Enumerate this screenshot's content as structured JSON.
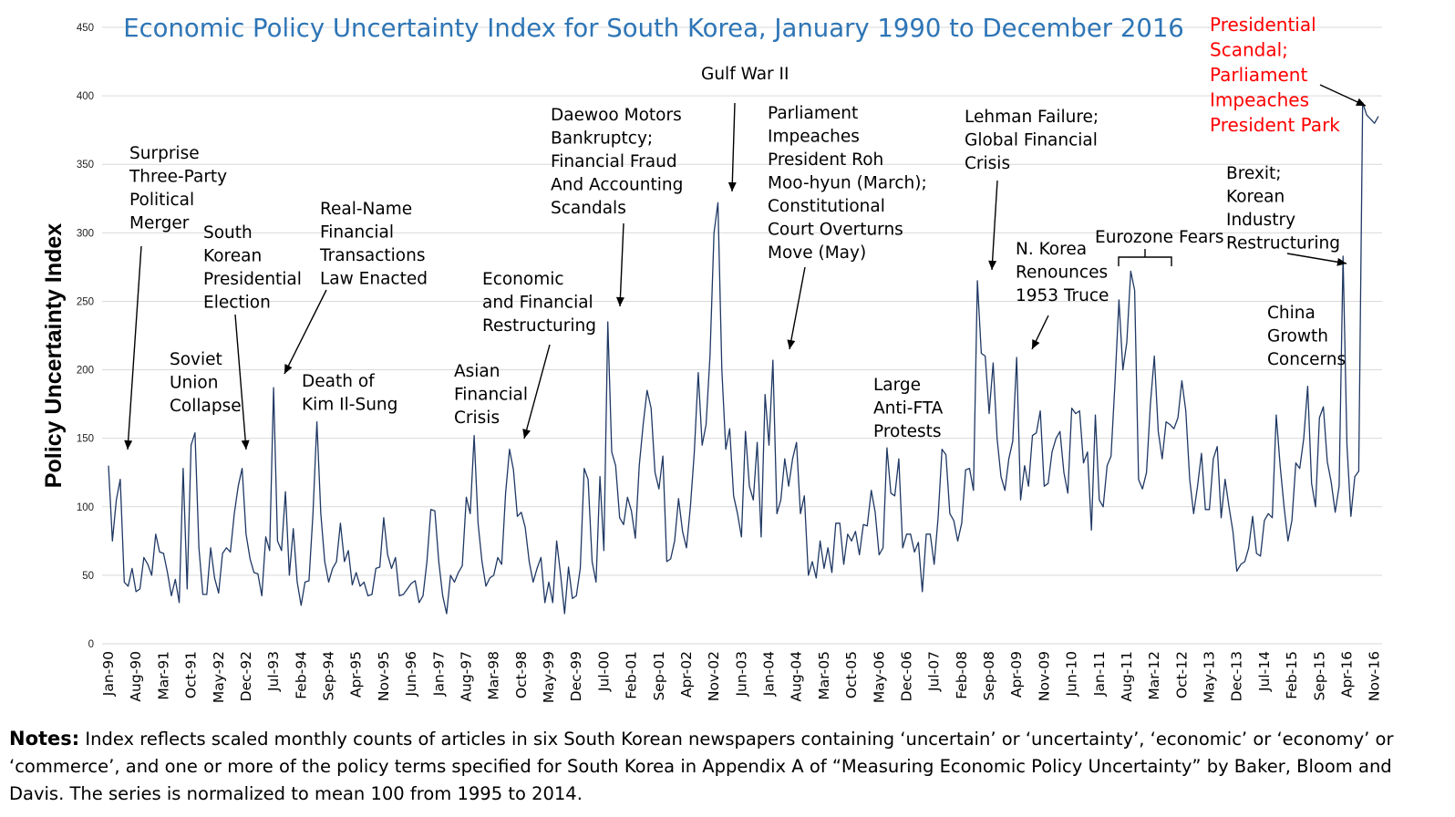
{
  "colors": {
    "line": "#1f3864",
    "title": "#2e75b6",
    "grid": "#d9d9d9",
    "highlight": "#ff0000",
    "text": "#000000"
  },
  "notes": {
    "label": "Notes:",
    "text": " Index reflects scaled monthly counts of articles in six South Korean newspapers containing ‘uncertain’ or ‘uncertainty’, ‘economic’ or ‘economy’ or ‘commerce’, and one or more of the policy terms specified for South Korea in Appendix A of “Measuring Economic Policy Uncertainty” by Baker, Bloom and Davis.  The series is normalized to mean 100 from 1995 to 2014."
  },
  "chart_data": {
    "type": "line",
    "title": "Economic Policy Uncertainty Index for South Korea, January 1990 to December 2016",
    "xlabel": "",
    "ylabel": "Policy Uncertainty Index",
    "ylim": [
      0,
      450
    ],
    "yticks": [
      0,
      50,
      100,
      150,
      200,
      250,
      300,
      350,
      400,
      450
    ],
    "grid": true,
    "x_start": "Jan-90",
    "x_end": "Dec-16",
    "xtick_labels": [
      "Jan-90",
      "Aug-90",
      "Mar-91",
      "Oct-91",
      "May-92",
      "Dec-92",
      "Jul-93",
      "Feb-94",
      "Sep-94",
      "Apr-95",
      "Nov-95",
      "Jun-96",
      "Jan-97",
      "Aug-97",
      "Mar-98",
      "Oct-98",
      "May-99",
      "Dec-99",
      "Jul-00",
      "Feb-01",
      "Sep-01",
      "Apr-02",
      "Nov-02",
      "Jun-03",
      "Jan-04",
      "Aug-04",
      "Mar-05",
      "Oct-05",
      "May-06",
      "Dec-06",
      "Jul-07",
      "Feb-08",
      "Sep-08",
      "Apr-09",
      "Nov-09",
      "Jun-10",
      "Jan-11",
      "Aug-11",
      "Mar-12",
      "Oct-12",
      "May-13",
      "Dec-13",
      "Jul-14",
      "Feb-15",
      "Sep-15",
      "Apr-16",
      "Nov-16"
    ],
    "xtick_every": 7,
    "anchors": [
      [
        0,
        130
      ],
      [
        1,
        75
      ],
      [
        2,
        105
      ],
      [
        3,
        120
      ],
      [
        4,
        45
      ],
      [
        5,
        42
      ],
      [
        6,
        55
      ],
      [
        7,
        38
      ],
      [
        8,
        40
      ],
      [
        9,
        63
      ],
      [
        10,
        58
      ],
      [
        11,
        50
      ],
      [
        12,
        80
      ],
      [
        13,
        67
      ],
      [
        14,
        66
      ],
      [
        15,
        52
      ],
      [
        16,
        35
      ],
      [
        17,
        47
      ],
      [
        18,
        30
      ],
      [
        19,
        128
      ],
      [
        20,
        40
      ],
      [
        21,
        145
      ],
      [
        22,
        154
      ],
      [
        23,
        70
      ],
      [
        24,
        36
      ],
      [
        25,
        36
      ],
      [
        26,
        70
      ],
      [
        27,
        48
      ],
      [
        28,
        37
      ],
      [
        29,
        66
      ],
      [
        30,
        70
      ],
      [
        31,
        67
      ],
      [
        32,
        95
      ],
      [
        33,
        115
      ],
      [
        34,
        128
      ],
      [
        35,
        80
      ],
      [
        36,
        62
      ],
      [
        37,
        52
      ],
      [
        38,
        51
      ],
      [
        39,
        35
      ],
      [
        40,
        78
      ],
      [
        41,
        68
      ],
      [
        42,
        187
      ],
      [
        43,
        75
      ],
      [
        44,
        68
      ],
      [
        45,
        111
      ],
      [
        46,
        50
      ],
      [
        47,
        84
      ],
      [
        48,
        45
      ],
      [
        49,
        28
      ],
      [
        50,
        45
      ],
      [
        51,
        46
      ],
      [
        52,
        95
      ],
      [
        53,
        162
      ],
      [
        54,
        95
      ],
      [
        55,
        60
      ],
      [
        56,
        45
      ],
      [
        57,
        55
      ],
      [
        58,
        60
      ],
      [
        59,
        88
      ],
      [
        60,
        60
      ],
      [
        61,
        68
      ],
      [
        62,
        43
      ],
      [
        63,
        52
      ],
      [
        64,
        42
      ],
      [
        65,
        45
      ],
      [
        66,
        35
      ],
      [
        67,
        36
      ],
      [
        68,
        55
      ],
      [
        69,
        56
      ],
      [
        70,
        92
      ],
      [
        71,
        65
      ],
      [
        72,
        55
      ],
      [
        73,
        63
      ],
      [
        74,
        35
      ],
      [
        75,
        36
      ],
      [
        76,
        40
      ],
      [
        77,
        44
      ],
      [
        78,
        46
      ],
      [
        79,
        30
      ],
      [
        80,
        35
      ],
      [
        81,
        60
      ],
      [
        82,
        98
      ],
      [
        83,
        97
      ],
      [
        84,
        60
      ],
      [
        85,
        35
      ],
      [
        86,
        22
      ],
      [
        87,
        50
      ],
      [
        88,
        45
      ],
      [
        89,
        52
      ],
      [
        90,
        57
      ],
      [
        91,
        107
      ],
      [
        92,
        95
      ],
      [
        93,
        152
      ],
      [
        94,
        88
      ],
      [
        95,
        60
      ],
      [
        96,
        42
      ],
      [
        97,
        48
      ],
      [
        98,
        50
      ],
      [
        99,
        63
      ],
      [
        100,
        58
      ],
      [
        101,
        110
      ],
      [
        102,
        142
      ],
      [
        103,
        127
      ],
      [
        104,
        93
      ],
      [
        105,
        96
      ],
      [
        106,
        85
      ],
      [
        107,
        60
      ],
      [
        108,
        45
      ],
      [
        109,
        55
      ],
      [
        110,
        63
      ],
      [
        111,
        30
      ],
      [
        112,
        45
      ],
      [
        113,
        30
      ],
      [
        114,
        75
      ],
      [
        115,
        50
      ],
      [
        116,
        22
      ],
      [
        117,
        56
      ],
      [
        118,
        33
      ],
      [
        119,
        35
      ],
      [
        120,
        55
      ],
      [
        121,
        128
      ],
      [
        122,
        120
      ],
      [
        123,
        60
      ],
      [
        124,
        45
      ],
      [
        125,
        122
      ],
      [
        126,
        68
      ],
      [
        127,
        235
      ],
      [
        128,
        140
      ],
      [
        129,
        130
      ],
      [
        130,
        92
      ],
      [
        131,
        87
      ],
      [
        132,
        107
      ],
      [
        133,
        97
      ],
      [
        134,
        77
      ],
      [
        135,
        130
      ],
      [
        136,
        160
      ],
      [
        137,
        185
      ],
      [
        138,
        172
      ],
      [
        139,
        125
      ],
      [
        140,
        113
      ],
      [
        141,
        137
      ],
      [
        142,
        60
      ],
      [
        143,
        62
      ],
      [
        144,
        75
      ],
      [
        145,
        106
      ],
      [
        146,
        82
      ],
      [
        147,
        70
      ],
      [
        148,
        100
      ],
      [
        149,
        140
      ],
      [
        150,
        198
      ],
      [
        151,
        145
      ],
      [
        152,
        160
      ],
      [
        153,
        210
      ],
      [
        154,
        300
      ],
      [
        155,
        322
      ],
      [
        156,
        200
      ],
      [
        157,
        142
      ],
      [
        158,
        157
      ],
      [
        159,
        108
      ],
      [
        160,
        95
      ],
      [
        161,
        78
      ],
      [
        162,
        155
      ],
      [
        163,
        115
      ],
      [
        164,
        105
      ],
      [
        165,
        147
      ],
      [
        166,
        78
      ],
      [
        167,
        182
      ],
      [
        168,
        145
      ],
      [
        169,
        207
      ],
      [
        170,
        95
      ],
      [
        171,
        105
      ],
      [
        172,
        135
      ],
      [
        173,
        115
      ],
      [
        174,
        135
      ],
      [
        175,
        147
      ],
      [
        176,
        95
      ],
      [
        177,
        108
      ],
      [
        178,
        50
      ],
      [
        179,
        60
      ],
      [
        180,
        48
      ],
      [
        181,
        75
      ],
      [
        182,
        55
      ],
      [
        183,
        70
      ],
      [
        184,
        52
      ],
      [
        185,
        88
      ],
      [
        186,
        88
      ],
      [
        187,
        58
      ],
      [
        188,
        80
      ],
      [
        189,
        75
      ],
      [
        190,
        82
      ],
      [
        191,
        65
      ],
      [
        192,
        87
      ],
      [
        193,
        86
      ],
      [
        194,
        112
      ],
      [
        195,
        96
      ],
      [
        196,
        65
      ],
      [
        197,
        70
      ],
      [
        198,
        143
      ],
      [
        199,
        110
      ],
      [
        200,
        108
      ],
      [
        201,
        135
      ],
      [
        202,
        70
      ],
      [
        203,
        80
      ],
      [
        204,
        80
      ],
      [
        205,
        67
      ],
      [
        206,
        74
      ],
      [
        207,
        38
      ],
      [
        208,
        80
      ],
      [
        209,
        80
      ],
      [
        210,
        58
      ],
      [
        211,
        92
      ],
      [
        212,
        142
      ],
      [
        213,
        138
      ],
      [
        214,
        95
      ],
      [
        215,
        90
      ],
      [
        216,
        75
      ],
      [
        217,
        88
      ],
      [
        218,
        127
      ],
      [
        219,
        128
      ],
      [
        220,
        112
      ],
      [
        221,
        265
      ],
      [
        222,
        212
      ],
      [
        223,
        210
      ],
      [
        224,
        168
      ],
      [
        225,
        205
      ],
      [
        226,
        150
      ],
      [
        227,
        122
      ],
      [
        228,
        112
      ],
      [
        229,
        135
      ],
      [
        230,
        148
      ],
      [
        231,
        209
      ],
      [
        232,
        105
      ],
      [
        233,
        130
      ],
      [
        234,
        115
      ],
      [
        235,
        152
      ],
      [
        236,
        154
      ],
      [
        237,
        170
      ],
      [
        238,
        115
      ],
      [
        239,
        117
      ],
      [
        240,
        140
      ],
      [
        241,
        150
      ],
      [
        242,
        155
      ],
      [
        243,
        125
      ],
      [
        244,
        110
      ],
      [
        245,
        172
      ],
      [
        246,
        168
      ],
      [
        247,
        170
      ],
      [
        248,
        132
      ],
      [
        249,
        140
      ],
      [
        250,
        83
      ],
      [
        251,
        167
      ],
      [
        252,
        105
      ],
      [
        253,
        100
      ],
      [
        254,
        130
      ],
      [
        255,
        137
      ],
      [
        256,
        190
      ],
      [
        257,
        251
      ],
      [
        258,
        200
      ],
      [
        259,
        220
      ],
      [
        260,
        272
      ],
      [
        261,
        258
      ],
      [
        262,
        120
      ],
      [
        263,
        113
      ],
      [
        264,
        125
      ],
      [
        265,
        175
      ],
      [
        266,
        210
      ],
      [
        267,
        155
      ],
      [
        268,
        135
      ],
      [
        269,
        162
      ],
      [
        270,
        160
      ],
      [
        271,
        157
      ],
      [
        272,
        165
      ],
      [
        273,
        192
      ],
      [
        274,
        170
      ],
      [
        275,
        120
      ],
      [
        276,
        95
      ],
      [
        277,
        115
      ],
      [
        278,
        139
      ],
      [
        279,
        98
      ],
      [
        280,
        98
      ],
      [
        281,
        135
      ],
      [
        282,
        144
      ],
      [
        283,
        92
      ],
      [
        284,
        120
      ],
      [
        285,
        100
      ],
      [
        286,
        82
      ],
      [
        287,
        53
      ],
      [
        288,
        58
      ],
      [
        289,
        60
      ],
      [
        290,
        70
      ],
      [
        291,
        93
      ],
      [
        292,
        66
      ],
      [
        293,
        64
      ],
      [
        294,
        90
      ],
      [
        295,
        95
      ],
      [
        296,
        92
      ],
      [
        297,
        167
      ],
      [
        298,
        130
      ],
      [
        299,
        100
      ],
      [
        300,
        75
      ],
      [
        301,
        90
      ],
      [
        302,
        132
      ],
      [
        303,
        128
      ],
      [
        304,
        150
      ],
      [
        305,
        188
      ],
      [
        306,
        117
      ],
      [
        307,
        100
      ],
      [
        308,
        165
      ],
      [
        309,
        173
      ],
      [
        310,
        133
      ],
      [
        311,
        118
      ],
      [
        312,
        96
      ],
      [
        313,
        115
      ],
      [
        314,
        283
      ],
      [
        315,
        145
      ],
      [
        316,
        93
      ],
      [
        317,
        122
      ],
      [
        318,
        126
      ],
      [
        319,
        395
      ],
      [
        320,
        386
      ],
      [
        321,
        383
      ],
      [
        322,
        380
      ],
      [
        323,
        385
      ]
    ],
    "annotations": [
      {
        "text": [
          "Surprise",
          "Three-Party",
          "Political",
          "Merger"
        ]
      },
      {
        "text": [
          "South",
          "Korean",
          "Presidential",
          "Election"
        ]
      },
      {
        "text": [
          "Soviet",
          "Union",
          "Collapse"
        ]
      },
      {
        "text": [
          "Real-Name",
          "Financial",
          "Transactions",
          "Law Enacted"
        ]
      },
      {
        "text": [
          "Death of",
          "Kim Il-Sung"
        ]
      },
      {
        "text": [
          "Asian",
          "Financial",
          "Crisis"
        ]
      },
      {
        "text": [
          "Economic",
          "and Financial",
          "Restructuring"
        ]
      },
      {
        "text": [
          "Daewoo Motors",
          "Bankruptcy;",
          "Financial Fraud",
          "And Accounting",
          "Scandals"
        ]
      },
      {
        "text": [
          "Gulf War II"
        ]
      },
      {
        "text": [
          "Parliament",
          "Impeaches",
          "President Roh",
          "Moo-hyun (March);",
          "Constitutional",
          "Court Overturns",
          "Move (May)"
        ]
      },
      {
        "text": [
          "Large",
          "Anti-FTA",
          "Protests"
        ]
      },
      {
        "text": [
          "Lehman Failure;",
          "Global Financial",
          "Crisis"
        ]
      },
      {
        "text": [
          "N. Korea",
          "Renounces",
          "1953 Truce"
        ]
      },
      {
        "text": [
          "Eurozone Fears"
        ]
      },
      {
        "text": [
          "China",
          "Growth",
          "Concerns"
        ]
      },
      {
        "text": [
          "Brexit;",
          "Korean",
          "Industry",
          "Restructuring"
        ]
      },
      {
        "text": [
          "Presidential",
          "Scandal;",
          "Parliament",
          "Impeaches",
          "President Park"
        ]
      }
    ]
  }
}
